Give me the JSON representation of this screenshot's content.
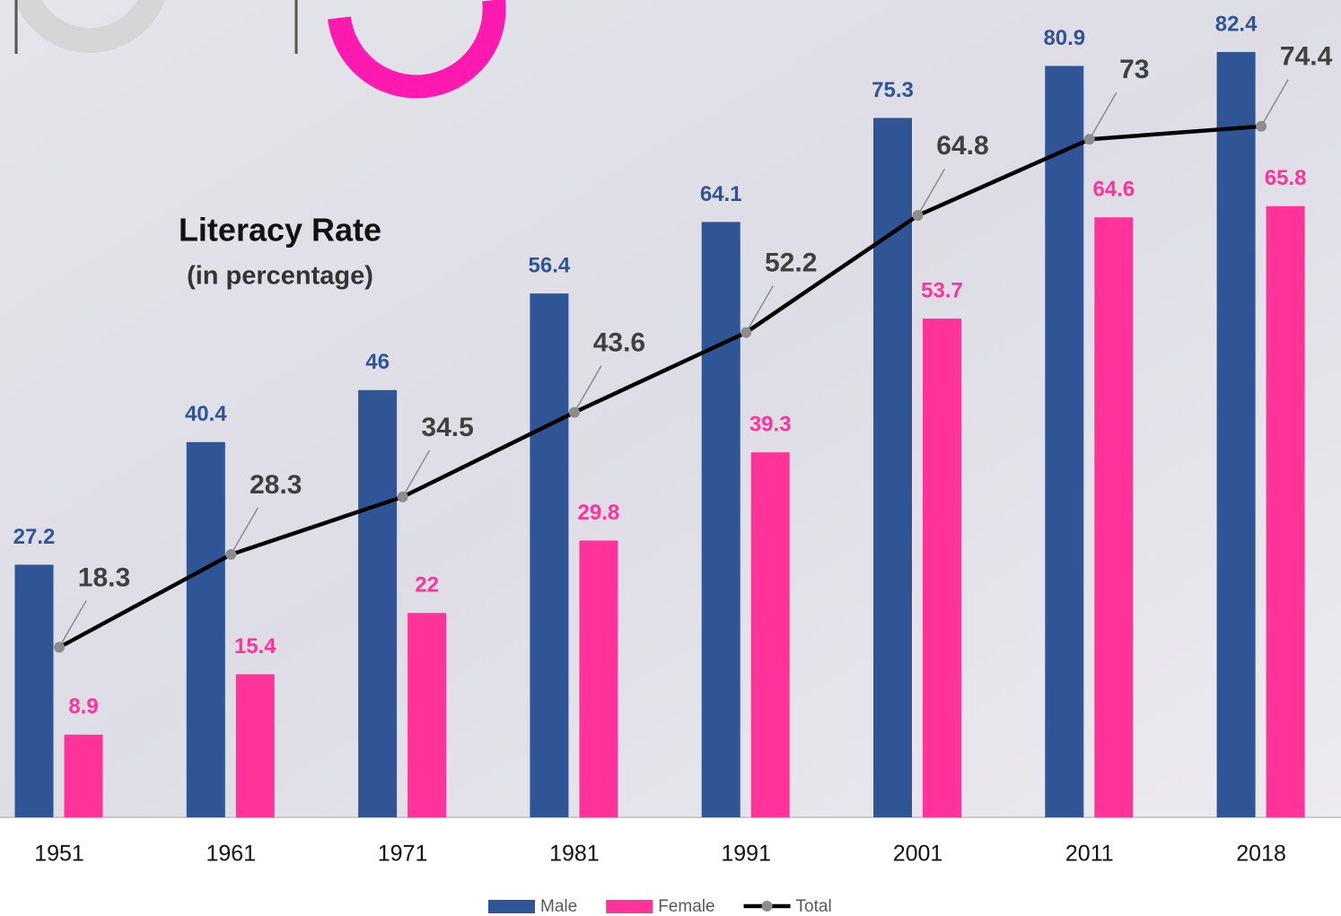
{
  "chart_data": {
    "type": "bar-line",
    "title": "Literacy Rate",
    "subtitle": "(in percentage)",
    "categories": [
      "1951",
      "1961",
      "1971",
      "1981",
      "1991",
      "2001",
      "2011",
      "2018"
    ],
    "series": [
      {
        "name": "Male",
        "type": "bar",
        "color": "#2f5597",
        "values": [
          27.2,
          40.4,
          46,
          56.4,
          64.1,
          75.3,
          80.9,
          82.4
        ]
      },
      {
        "name": "Female",
        "type": "bar",
        "color": "#ff3399",
        "values": [
          8.9,
          15.4,
          22,
          29.8,
          39.3,
          53.7,
          64.6,
          65.8
        ]
      },
      {
        "name": "Total",
        "type": "line",
        "color": "#000000",
        "values": [
          18.3,
          28.3,
          34.5,
          43.6,
          52.2,
          64.8,
          73,
          74.4
        ]
      }
    ],
    "ylim": [
      0,
      88
    ],
    "grid": false
  }
}
